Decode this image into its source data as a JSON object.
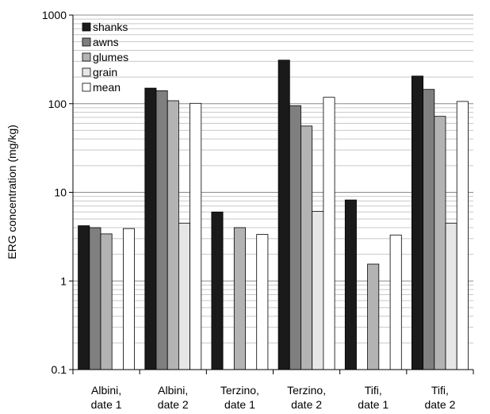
{
  "chart_data": {
    "type": "bar",
    "yscale": "log",
    "ylim": [
      0.1,
      1000
    ],
    "ylabel": "ERG concentration (mg/kg)",
    "xlabel": "",
    "title": "",
    "grid": true,
    "legend_position": "top-left",
    "y_ticks": [
      "0.1",
      "1",
      "10",
      "100",
      "1000"
    ],
    "categories": [
      [
        "Albini,",
        "date 1"
      ],
      [
        "Albini,",
        "date 2"
      ],
      [
        "Terzino,",
        "date 1"
      ],
      [
        "Terzino,",
        "date 2"
      ],
      [
        "Tifi,",
        "date 1"
      ],
      [
        "Tifi,",
        "date 2"
      ]
    ],
    "series": [
      {
        "name": "shanks",
        "color": "#1a1a1a",
        "values": [
          4.2,
          150,
          6.0,
          310,
          8.2,
          205
        ]
      },
      {
        "name": "awns",
        "color": "#7f7f7f",
        "values": [
          4.0,
          140,
          null,
          95,
          null,
          145
        ]
      },
      {
        "name": "glumes",
        "color": "#b3b3b3",
        "values": [
          3.4,
          108,
          4.0,
          56,
          1.55,
          72
        ]
      },
      {
        "name": "grain",
        "color": "#e6e6e6",
        "values": [
          null,
          4.5,
          null,
          6.1,
          null,
          4.5
        ]
      },
      {
        "name": "mean",
        "color": "#ffffff",
        "values": [
          3.9,
          101,
          3.35,
          118,
          3.3,
          106
        ]
      }
    ]
  }
}
